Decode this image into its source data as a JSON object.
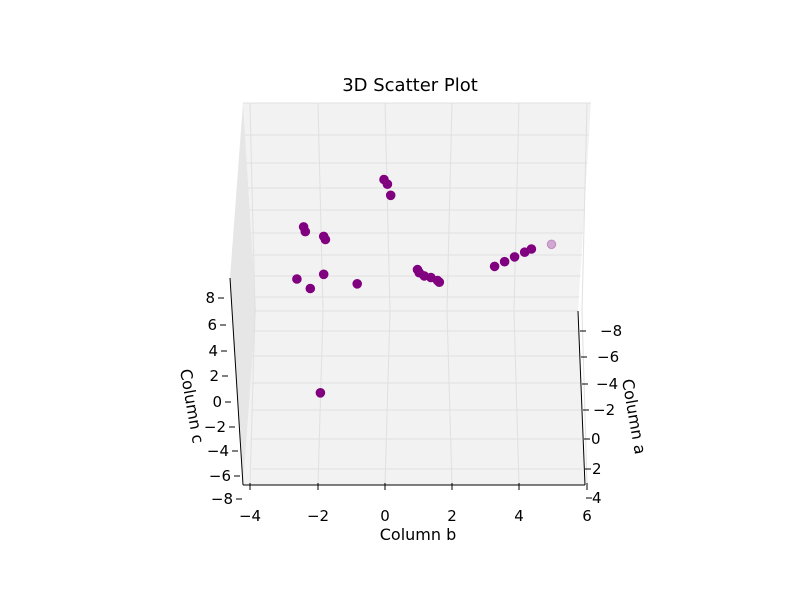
{
  "chart_data": {
    "type": "scatter",
    "title": "3D Scatter Plot",
    "xlabel": "Column b",
    "ylabel": "Column a",
    "zlabel": "Column c",
    "x_ticks": [
      "−4",
      "−2",
      "0",
      "2",
      "4",
      "6"
    ],
    "y_ticks": [
      "−8",
      "−6",
      "−4",
      "−2",
      "0",
      "2",
      "4"
    ],
    "z_ticks": [
      "−8",
      "−6",
      "−4",
      "−2",
      "0",
      "2",
      "4",
      "6",
      "8"
    ],
    "xlim": [
      -4,
      6
    ],
    "zlim": [
      -8,
      8
    ],
    "color": "#800080",
    "grid": true,
    "series": [
      {
        "points": [
          {
            "b": -1.9,
            "c": -6.0
          },
          {
            "b": -2.6,
            "c": 1.2
          },
          {
            "b": -1.8,
            "c": 1.5
          },
          {
            "b": -0.8,
            "c": 0.9
          },
          {
            "b": -2.2,
            "c": 0.6
          },
          {
            "b": 1.0,
            "c": 1.8
          },
          {
            "b": 1.05,
            "c": 1.6
          },
          {
            "b": 1.2,
            "c": 1.4
          },
          {
            "b": 1.4,
            "c": 1.3
          },
          {
            "b": 1.6,
            "c": 1.1
          },
          {
            "b": 1.65,
            "c": 1.0
          },
          {
            "b": -2.4,
            "c": 4.5
          },
          {
            "b": -2.35,
            "c": 4.2
          },
          {
            "b": -1.8,
            "c": 3.9
          },
          {
            "b": -1.75,
            "c": 3.7
          },
          {
            "b": 0.0,
            "c": 7.5
          },
          {
            "b": 0.1,
            "c": 7.2
          },
          {
            "b": 0.2,
            "c": 6.5
          },
          {
            "b": 3.3,
            "c": 2.0
          },
          {
            "b": 3.6,
            "c": 2.3
          },
          {
            "b": 3.9,
            "c": 2.6
          },
          {
            "b": 4.2,
            "c": 2.9
          },
          {
            "b": 4.4,
            "c": 3.1
          },
          {
            "b": 5.0,
            "c": 3.4
          }
        ]
      }
    ]
  }
}
